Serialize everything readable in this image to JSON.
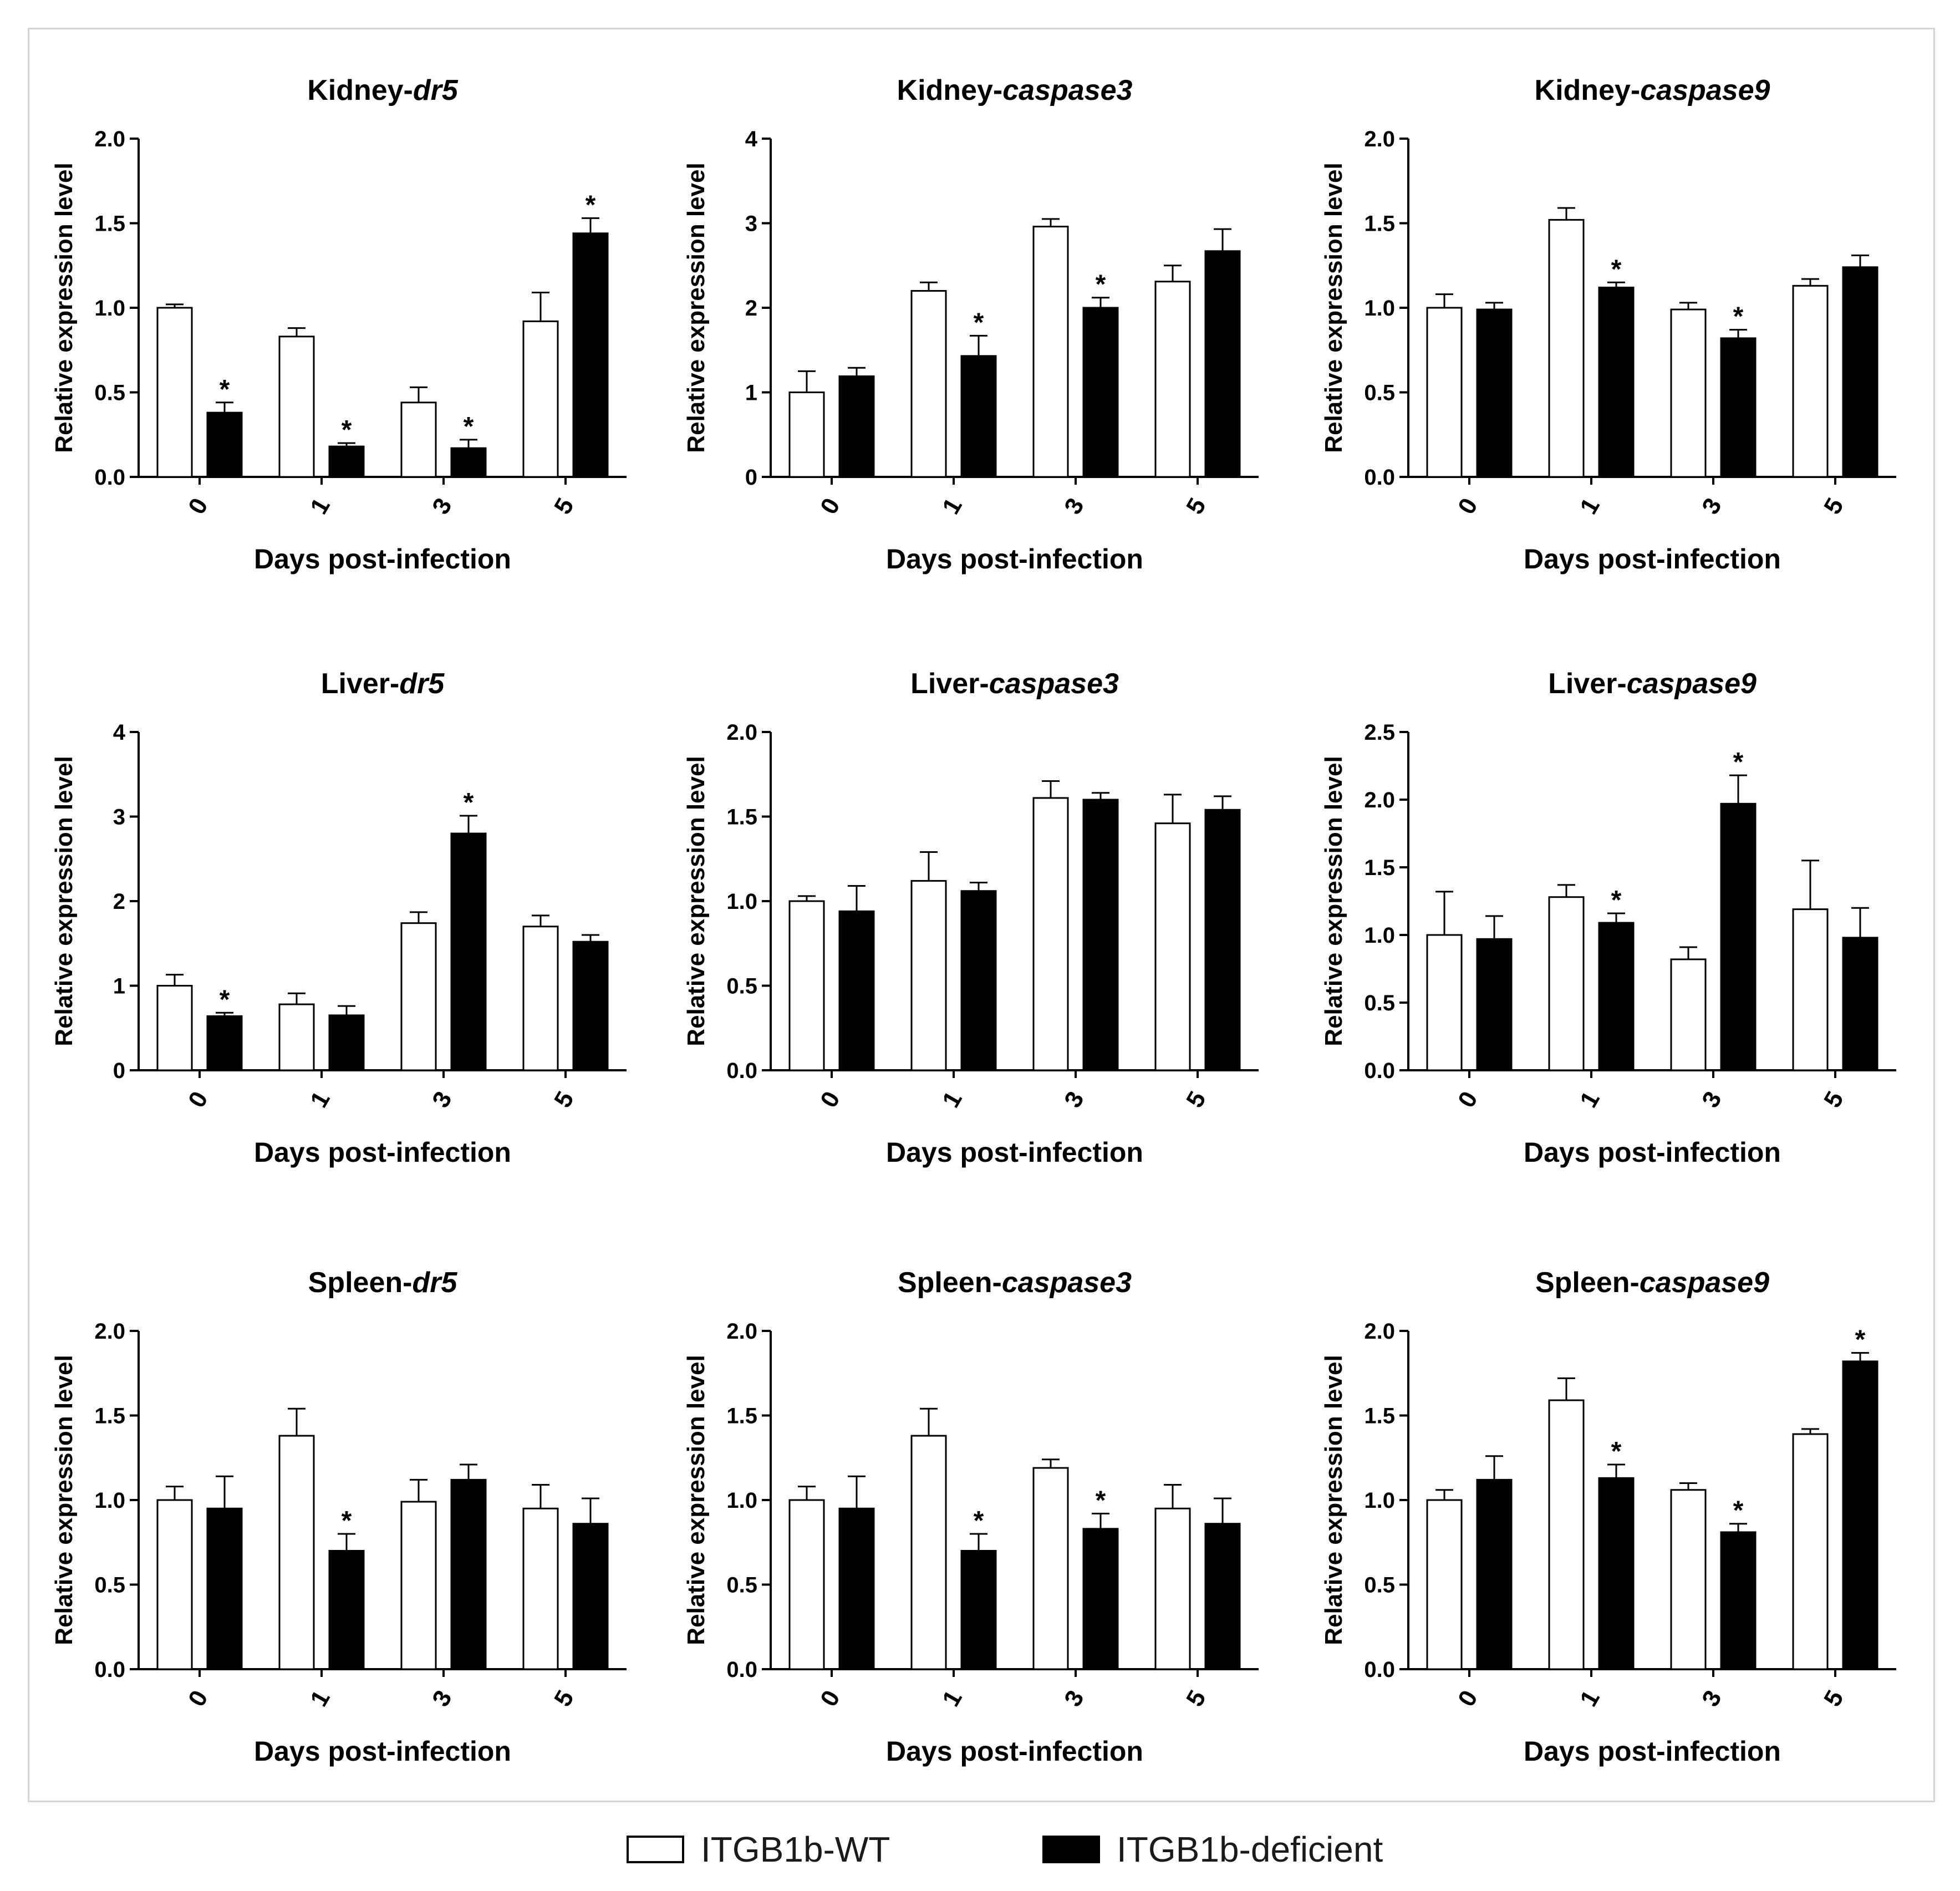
{
  "legend": {
    "wt_label": "ITGB1b-WT",
    "def_label": "ITGB1b-deficient",
    "wt_color": "#ffffff",
    "def_color": "#000000"
  },
  "chart_data": [
    {
      "type": "bar",
      "title_prefix": "Kidney-",
      "title_gene": "dr5",
      "ylabel": "Relative expression level",
      "xlabel": "Days post-infection",
      "categories": [
        "0",
        "1",
        "3",
        "5"
      ],
      "ylim": [
        0,
        2.0
      ],
      "yticks": [
        "0.0",
        "0.5",
        "1.0",
        "1.5",
        "2.0"
      ],
      "series": [
        {
          "name": "ITGB1b-WT",
          "values": [
            1.0,
            0.83,
            0.44,
            0.92
          ],
          "errors": [
            0.02,
            0.05,
            0.09,
            0.17
          ],
          "sig": [
            false,
            false,
            false,
            false
          ]
        },
        {
          "name": "ITGB1b-deficient",
          "values": [
            0.38,
            0.18,
            0.17,
            1.44
          ],
          "errors": [
            0.06,
            0.02,
            0.05,
            0.09
          ],
          "sig": [
            true,
            true,
            true,
            true
          ]
        }
      ]
    },
    {
      "type": "bar",
      "title_prefix": "Kidney-",
      "title_gene": "caspase3",
      "ylabel": "Relative expression level",
      "xlabel": "Days post-infection",
      "categories": [
        "0",
        "1",
        "3",
        "5"
      ],
      "ylim": [
        0,
        4
      ],
      "yticks": [
        "0",
        "1",
        "2",
        "3",
        "4"
      ],
      "series": [
        {
          "name": "ITGB1b-WT",
          "values": [
            1.0,
            2.2,
            2.96,
            2.31
          ],
          "errors": [
            0.25,
            0.1,
            0.09,
            0.19
          ],
          "sig": [
            false,
            false,
            false,
            false
          ]
        },
        {
          "name": "ITGB1b-deficient",
          "values": [
            1.19,
            1.43,
            2.0,
            2.67
          ],
          "errors": [
            0.1,
            0.24,
            0.12,
            0.26
          ],
          "sig": [
            false,
            true,
            true,
            false
          ]
        }
      ]
    },
    {
      "type": "bar",
      "title_prefix": "Kidney-",
      "title_gene": "caspase9",
      "ylabel": "Relative expression level",
      "xlabel": "Days post-infection",
      "categories": [
        "0",
        "1",
        "3",
        "5"
      ],
      "ylim": [
        0,
        2.0
      ],
      "yticks": [
        "0.0",
        "0.5",
        "1.0",
        "1.5",
        "2.0"
      ],
      "series": [
        {
          "name": "ITGB1b-WT",
          "values": [
            1.0,
            1.52,
            0.99,
            1.13
          ],
          "errors": [
            0.08,
            0.07,
            0.04,
            0.04
          ],
          "sig": [
            false,
            false,
            false,
            false
          ]
        },
        {
          "name": "ITGB1b-deficient",
          "values": [
            0.99,
            1.12,
            0.82,
            1.24
          ],
          "errors": [
            0.04,
            0.03,
            0.05,
            0.07
          ],
          "sig": [
            false,
            true,
            true,
            false
          ]
        }
      ]
    },
    {
      "type": "bar",
      "title_prefix": "Liver-",
      "title_gene": "dr5",
      "ylabel": "Relative expression level",
      "xlabel": "Days post-infection",
      "categories": [
        "0",
        "1",
        "3",
        "5"
      ],
      "ylim": [
        0,
        4
      ],
      "yticks": [
        "0",
        "1",
        "2",
        "3",
        "4"
      ],
      "series": [
        {
          "name": "ITGB1b-WT",
          "values": [
            1.0,
            0.78,
            1.74,
            1.7
          ],
          "errors": [
            0.13,
            0.13,
            0.13,
            0.13
          ],
          "sig": [
            false,
            false,
            false,
            false
          ]
        },
        {
          "name": "ITGB1b-deficient",
          "values": [
            0.64,
            0.65,
            2.8,
            1.52
          ],
          "errors": [
            0.04,
            0.11,
            0.21,
            0.08
          ],
          "sig": [
            true,
            false,
            true,
            false
          ]
        }
      ]
    },
    {
      "type": "bar",
      "title_prefix": "Liver-",
      "title_gene": "caspase3",
      "ylabel": "Relative expression level",
      "xlabel": "Days post-infection",
      "categories": [
        "0",
        "1",
        "3",
        "5"
      ],
      "ylim": [
        0,
        2.0
      ],
      "yticks": [
        "0.0",
        "0.5",
        "1.0",
        "1.5",
        "2.0"
      ],
      "series": [
        {
          "name": "ITGB1b-WT",
          "values": [
            1.0,
            1.12,
            1.61,
            1.46
          ],
          "errors": [
            0.03,
            0.17,
            0.1,
            0.17
          ],
          "sig": [
            false,
            false,
            false,
            false
          ]
        },
        {
          "name": "ITGB1b-deficient",
          "values": [
            0.94,
            1.06,
            1.6,
            1.54
          ],
          "errors": [
            0.15,
            0.05,
            0.04,
            0.08
          ],
          "sig": [
            false,
            false,
            false,
            false
          ]
        }
      ]
    },
    {
      "type": "bar",
      "title_prefix": "Liver-",
      "title_gene": "caspase9",
      "ylabel": "Relative expression level",
      "xlabel": "Days post-infection",
      "categories": [
        "0",
        "1",
        "3",
        "5"
      ],
      "ylim": [
        0,
        2.5
      ],
      "yticks": [
        "0.0",
        "0.5",
        "1.0",
        "1.5",
        "2.0",
        "2.5"
      ],
      "series": [
        {
          "name": "ITGB1b-WT",
          "values": [
            1.0,
            1.28,
            0.82,
            1.19
          ],
          "errors": [
            0.32,
            0.09,
            0.09,
            0.36
          ],
          "sig": [
            false,
            false,
            false,
            false
          ]
        },
        {
          "name": "ITGB1b-deficient",
          "values": [
            0.97,
            1.09,
            1.97,
            0.98
          ],
          "errors": [
            0.17,
            0.07,
            0.21,
            0.22
          ],
          "sig": [
            false,
            true,
            true,
            false
          ]
        }
      ]
    },
    {
      "type": "bar",
      "title_prefix": "Spleen-",
      "title_gene": "dr5",
      "ylabel": "Relative expression level",
      "xlabel": "Days post-infection",
      "categories": [
        "0",
        "1",
        "3",
        "5"
      ],
      "ylim": [
        0,
        2.0
      ],
      "yticks": [
        "0.0",
        "0.5",
        "1.0",
        "1.5",
        "2.0"
      ],
      "series": [
        {
          "name": "ITGB1b-WT",
          "values": [
            1.0,
            1.38,
            0.99,
            0.95
          ],
          "errors": [
            0.08,
            0.16,
            0.13,
            0.14
          ],
          "sig": [
            false,
            false,
            false,
            false
          ]
        },
        {
          "name": "ITGB1b-deficient",
          "values": [
            0.95,
            0.7,
            1.12,
            0.86
          ],
          "errors": [
            0.19,
            0.1,
            0.09,
            0.15
          ],
          "sig": [
            false,
            true,
            false,
            false
          ]
        }
      ]
    },
    {
      "type": "bar",
      "title_prefix": "Spleen-",
      "title_gene": "caspase3",
      "ylabel": "Relative expression level",
      "xlabel": "Days post-infection",
      "categories": [
        "0",
        "1",
        "3",
        "5"
      ],
      "ylim": [
        0,
        2.0
      ],
      "yticks": [
        "0.0",
        "0.5",
        "1.0",
        "1.5",
        "2.0"
      ],
      "series": [
        {
          "name": "ITGB1b-WT",
          "values": [
            1.0,
            1.38,
            1.19,
            0.95
          ],
          "errors": [
            0.08,
            0.16,
            0.05,
            0.14
          ],
          "sig": [
            false,
            false,
            false,
            false
          ]
        },
        {
          "name": "ITGB1b-deficient",
          "values": [
            0.95,
            0.7,
            0.83,
            0.86
          ],
          "errors": [
            0.19,
            0.1,
            0.09,
            0.15
          ],
          "sig": [
            false,
            true,
            true,
            false
          ]
        }
      ]
    },
    {
      "type": "bar",
      "title_prefix": "Spleen-",
      "title_gene": "caspase9",
      "ylabel": "Relative expression level",
      "xlabel": "Days post-infection",
      "categories": [
        "0",
        "1",
        "3",
        "5"
      ],
      "ylim": [
        0,
        2.0
      ],
      "yticks": [
        "0.0",
        "0.5",
        "1.0",
        "1.5",
        "2.0"
      ],
      "series": [
        {
          "name": "ITGB1b-WT",
          "values": [
            1.0,
            1.59,
            1.06,
            1.39
          ],
          "errors": [
            0.06,
            0.13,
            0.04,
            0.03
          ],
          "sig": [
            false,
            false,
            false,
            false
          ]
        },
        {
          "name": "ITGB1b-deficient",
          "values": [
            1.12,
            1.13,
            0.81,
            1.82
          ],
          "errors": [
            0.14,
            0.08,
            0.05,
            0.05
          ],
          "sig": [
            false,
            true,
            true,
            true
          ]
        }
      ]
    }
  ]
}
